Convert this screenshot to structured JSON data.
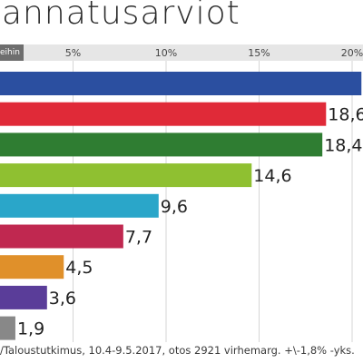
{
  "header": {
    "title": "annatusarviot",
    "axis_badge": "eihin"
  },
  "source_note": "/Taloustutkimus, 10.4-9.5.2017, otos 2921 virhemarg. +\\-1,8% -yks.",
  "chart_data": {
    "type": "bar",
    "orientation": "horizontal",
    "xlim": [
      0,
      20
    ],
    "ticks": [
      {
        "value": 5,
        "label": "5%"
      },
      {
        "value": 10,
        "label": "10%"
      },
      {
        "value": 15,
        "label": "15%"
      },
      {
        "value": 20,
        "label": "20%"
      }
    ],
    "grid": true,
    "bars": [
      {
        "value": 20.5,
        "label": "",
        "color": "#2b4fa0"
      },
      {
        "value": 18.6,
        "label": "18,6",
        "color": "#e02a38"
      },
      {
        "value": 18.4,
        "label": "18,4",
        "color": "#2f7d32"
      },
      {
        "value": 14.6,
        "label": "14,6",
        "color": "#8fc031"
      },
      {
        "value": 9.6,
        "label": "9,6",
        "color": "#2aa6c9"
      },
      {
        "value": 7.7,
        "label": "7,7",
        "color": "#c02850"
      },
      {
        "value": 4.5,
        "label": "4,5",
        "color": "#e0902a"
      },
      {
        "value": 3.6,
        "label": "3,6",
        "color": "#5a3d99"
      },
      {
        "value": 1.9,
        "label": "1,9",
        "color": "#888888"
      }
    ]
  }
}
